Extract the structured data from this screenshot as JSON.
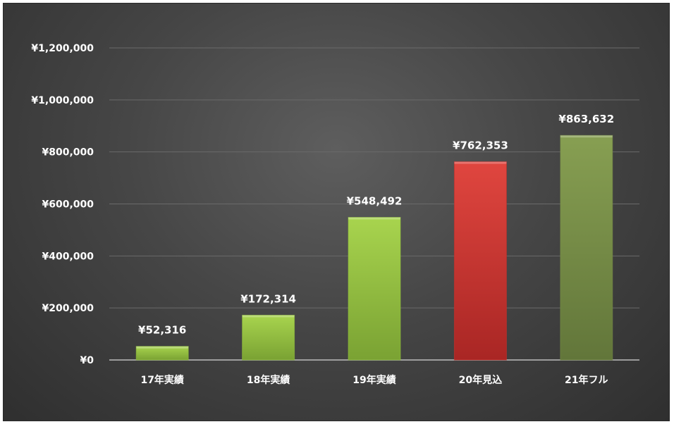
{
  "chart_data": {
    "type": "bar",
    "categories": [
      "17年実績",
      "18年実績",
      "19年実績",
      "20年見込",
      "21年フル"
    ],
    "values": [
      52316,
      172314,
      548492,
      762353,
      863632
    ],
    "data_labels": [
      "¥52,316",
      "¥172,314",
      "¥548,492",
      "¥762,353",
      "¥863,632"
    ],
    "bar_colors": [
      "#8fbe3c",
      "#8fbe3c",
      "#8fbe3c",
      "#c9302c",
      "#748a45"
    ],
    "ylim": [
      0,
      1200000
    ],
    "y_ticks": [
      0,
      200000,
      400000,
      600000,
      800000,
      1000000,
      1200000
    ],
    "y_tick_labels": [
      "¥0",
      "¥200,000",
      "¥400,000",
      "¥600,000",
      "¥800,000",
      "¥1,000,000",
      "¥1,200,000"
    ],
    "grid": true,
    "legend": "none"
  }
}
